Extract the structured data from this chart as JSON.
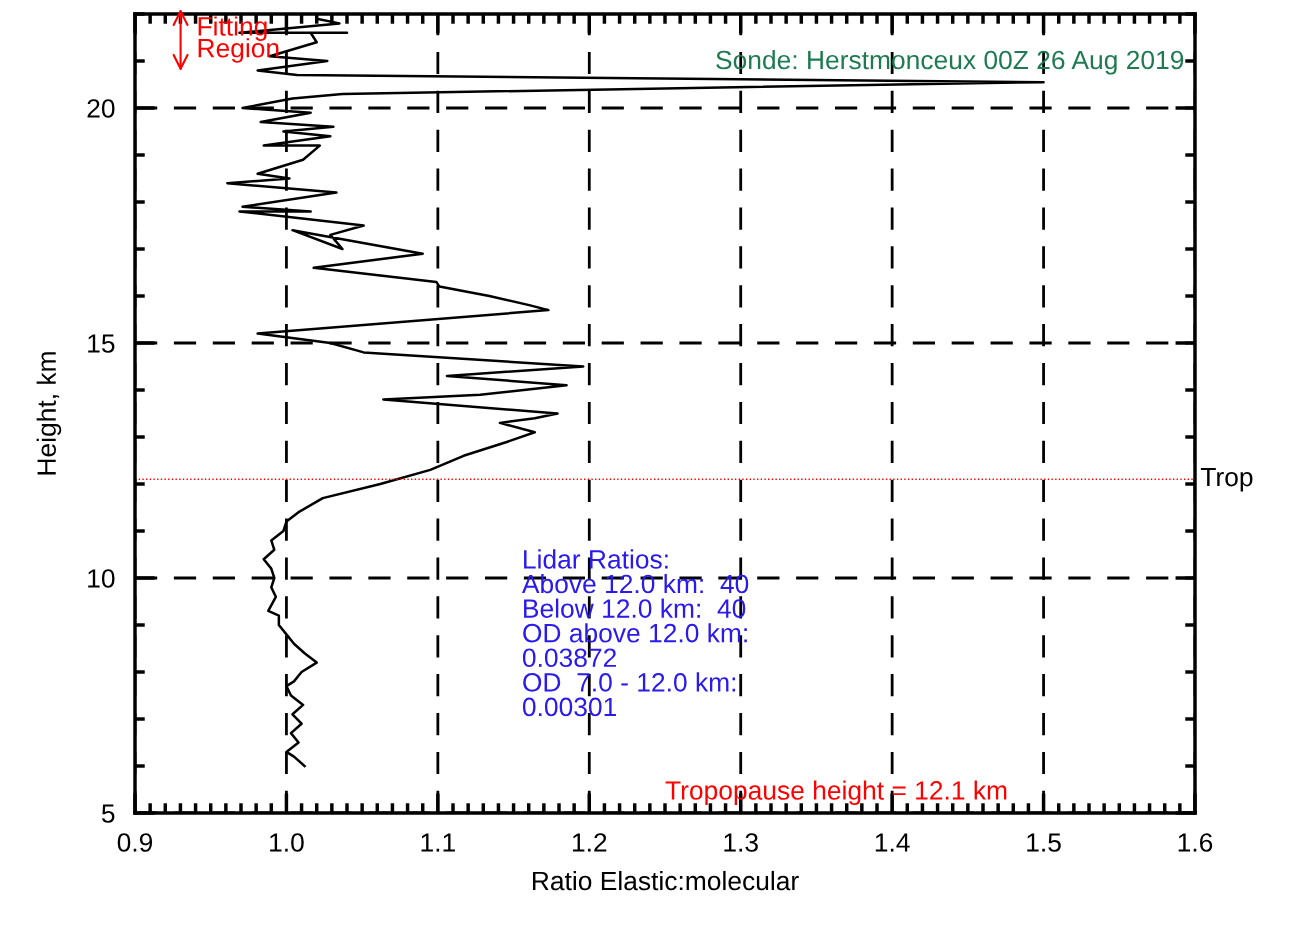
{
  "chart_data": {
    "type": "line",
    "xlabel": "Ratio Elastic:molecular",
    "ylabel": "Height, km",
    "xlim": [
      0.9,
      1.6
    ],
    "ylim": [
      5,
      22
    ],
    "xticks": [
      {
        "value": 0.9,
        "label": "0.9"
      },
      {
        "value": 1.0,
        "label": "1.0"
      },
      {
        "value": 1.1,
        "label": "1.1"
      },
      {
        "value": 1.2,
        "label": "1.2"
      },
      {
        "value": 1.3,
        "label": "1.3"
      },
      {
        "value": 1.4,
        "label": "1.4"
      },
      {
        "value": 1.5,
        "label": "1.5"
      },
      {
        "value": 1.6,
        "label": "1.6"
      }
    ],
    "yticks": [
      5,
      10,
      15,
      20
    ],
    "grid": true,
    "legend": false,
    "marker": "none",
    "line_style": "solid",
    "series": [
      {
        "color": "#000000",
        "x": [
          1.012,
          1.005,
          1.0,
          1.008,
          1.003,
          1.01,
          1.004,
          1.011,
          1.003,
          1.0,
          1.005,
          1.01,
          1.02,
          1.012,
          1.005,
          1.0,
          0.995,
          0.995,
          0.988,
          0.993,
          0.99,
          0.992,
          0.99,
          0.985,
          0.992,
          0.99,
          0.998,
          1.0,
          1.008,
          1.024,
          1.062,
          1.095,
          1.117,
          1.146,
          1.164,
          1.141,
          1.164,
          1.179,
          1.064,
          1.128,
          1.185,
          1.106,
          1.196,
          1.051,
          1.029,
          0.981,
          1.173,
          1.161,
          1.134,
          1.101,
          1.099,
          1.018,
          1.09,
          1.004,
          1.037,
          1.029,
          1.051,
          0.969,
          1.016,
          0.971,
          1.033,
          0.961,
          1.002,
          0.981,
          1.011,
          1.022,
          0.985,
          1.029,
          0.998,
          1.031,
          0.983,
          1.016,
          0.971,
          1.004,
          1.037,
          1.5,
          1.007,
          0.981,
          1.027,
          0.989,
          1.02,
          1.016,
          1.04,
          0.969,
          1.035,
          1.02
        ],
        "values": [
          6.0,
          6.2,
          6.3,
          6.5,
          6.7,
          6.9,
          7.1,
          7.3,
          7.5,
          7.7,
          7.8,
          8.0,
          8.2,
          8.4,
          8.6,
          8.8,
          9.0,
          9.2,
          9.3,
          9.6,
          9.8,
          10.0,
          10.2,
          10.4,
          10.6,
          10.8,
          11.0,
          11.2,
          11.4,
          11.7,
          12.0,
          12.3,
          12.6,
          12.9,
          13.1,
          13.3,
          13.4,
          13.5,
          13.8,
          13.9,
          14.1,
          14.3,
          14.5,
          14.8,
          15.0,
          15.2,
          15.7,
          15.8,
          16.0,
          16.2,
          16.3,
          16.6,
          16.9,
          17.4,
          17.0,
          17.3,
          17.5,
          17.8,
          17.8,
          17.9,
          18.2,
          18.4,
          18.5,
          18.6,
          18.9,
          19.2,
          19.2,
          19.4,
          19.5,
          19.6,
          19.7,
          19.9,
          20.0,
          20.2,
          20.3,
          20.55,
          20.7,
          20.8,
          21.0,
          21.1,
          21.4,
          21.6,
          21.6,
          21.6,
          21.8,
          21.9
        ]
      }
    ],
    "ref_lines": [
      {
        "axis": "y",
        "value": 12.1,
        "label": "Trop",
        "color": "#ff0000",
        "line_style": "dotted"
      }
    ],
    "annotations": [
      "Sonde: Herstmonceux 00Z 26 Aug 2019",
      "Fitting\nRegion",
      "Lidar Ratios:\nAbove 12.0 km:  40\nBelow 12.0 km:  40\nOD above 12.0 km:\n0.03872\nOD  7.0 - 12.0 km:\n0.00301",
      "Tropopause height = 12.1 km"
    ]
  }
}
